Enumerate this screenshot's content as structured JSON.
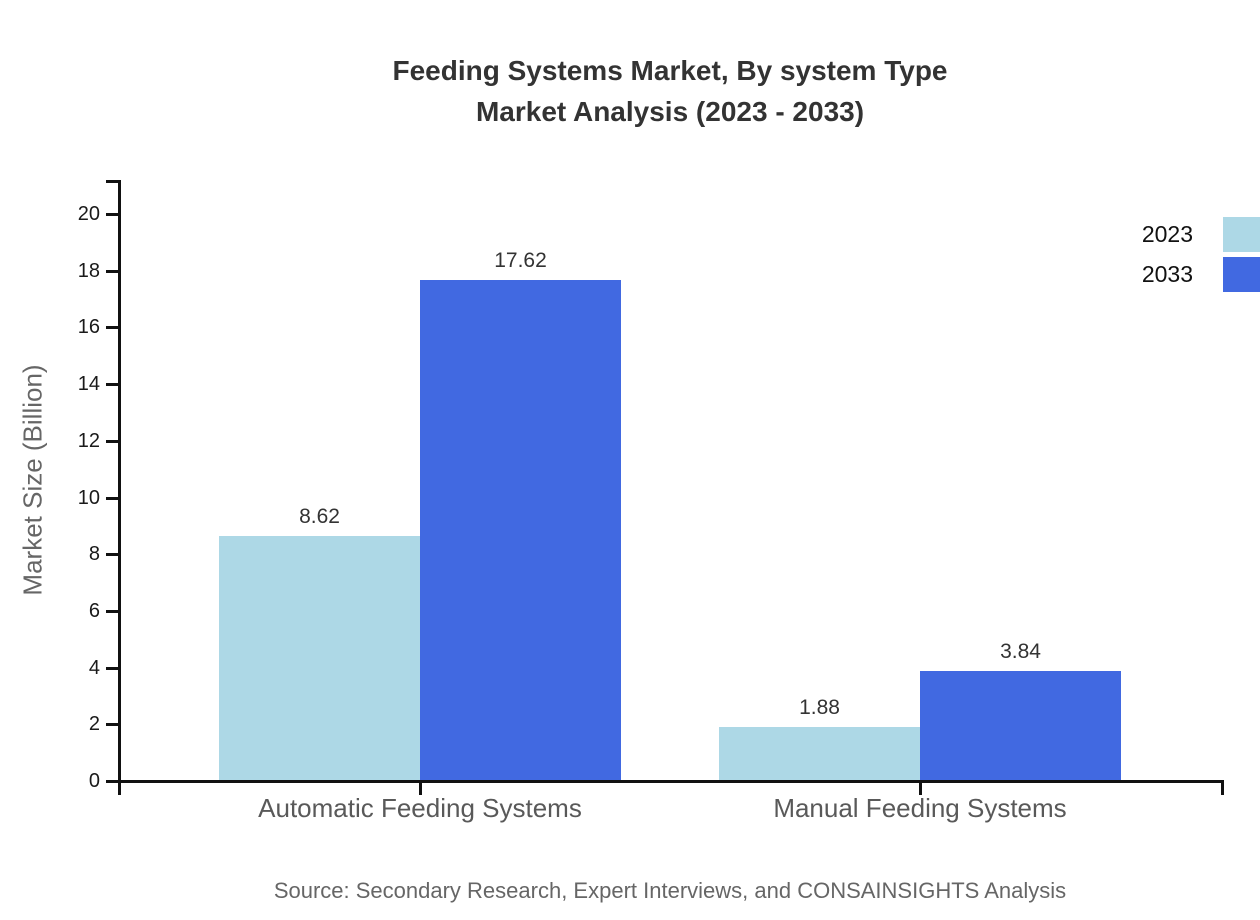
{
  "title": {
    "line1": "Feeding Systems Market, By system Type",
    "line2": "Market Analysis (2023 - 2033)"
  },
  "source": "Source: Secondary Research, Expert Interviews, and CONSAINSIGHTS Analysis",
  "chart_data": {
    "type": "bar",
    "categories": [
      "Automatic Feeding Systems",
      "Manual Feeding Systems"
    ],
    "series": [
      {
        "name": "2023",
        "color": "#ADD8E6",
        "values": [
          8.62,
          1.88
        ]
      },
      {
        "name": "2033",
        "color": "#4169E1",
        "values": [
          17.62,
          3.84
        ]
      }
    ],
    "value_labels": [
      "8.62",
      "17.62",
      "1.88",
      "3.84"
    ],
    "title": "Feeding Systems Market, By system Type Market Analysis (2023 - 2033)",
    "xlabel": "",
    "ylabel": "Market Size (Billion)",
    "ylim": [
      0,
      20
    ],
    "yticks": [
      0,
      2,
      4,
      6,
      8,
      10,
      12,
      14,
      16,
      18,
      20
    ],
    "grid": false,
    "legend_position": "top-right",
    "colors": {
      "series_2023": "#ADD8E6",
      "series_2033": "#4169E1",
      "axis": "#111111",
      "title": "#333333",
      "muted_text": "#666666"
    }
  }
}
